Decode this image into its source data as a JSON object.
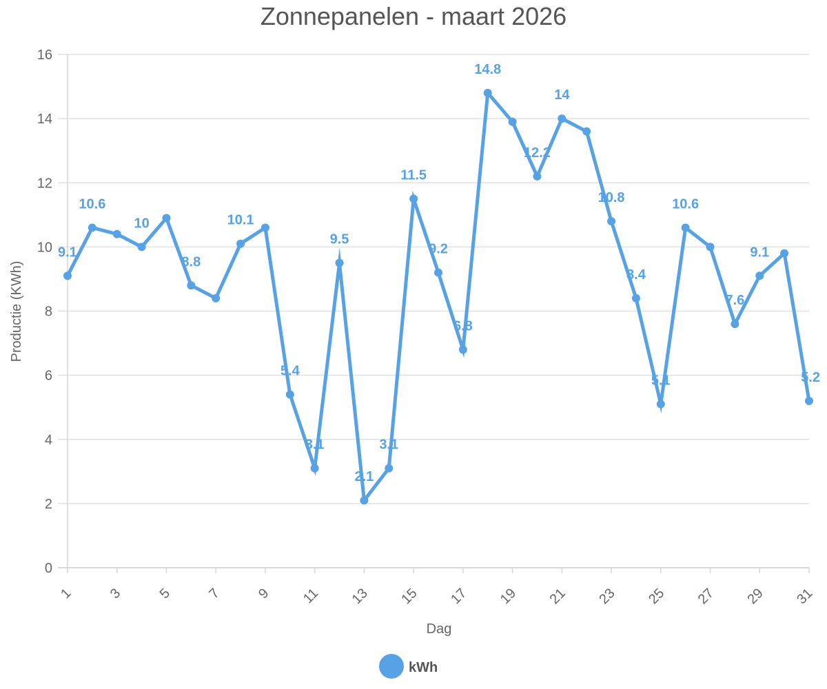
{
  "chart_data": {
    "type": "line",
    "title": "Zonnepanelen - maart 2026",
    "xlabel": "Dag",
    "ylabel": "Productie (KWh)",
    "ylim": [
      0,
      16
    ],
    "yticks": [
      0,
      2,
      4,
      6,
      8,
      10,
      12,
      14,
      16
    ],
    "xticks": [
      1,
      3,
      5,
      7,
      9,
      11,
      13,
      15,
      17,
      19,
      21,
      23,
      25,
      27,
      29,
      31
    ],
    "grid": true,
    "legend_position": "bottom",
    "x": [
      1,
      2,
      3,
      4,
      5,
      6,
      7,
      8,
      9,
      10,
      11,
      12,
      13,
      14,
      15,
      16,
      17,
      18,
      19,
      20,
      21,
      22,
      23,
      24,
      25,
      26,
      27,
      28,
      29,
      30,
      31
    ],
    "series": [
      {
        "name": "kWh",
        "color": "#57A2E5",
        "values": [
          9.1,
          10.6,
          10.4,
          10,
          10.9,
          8.8,
          8.4,
          10.1,
          10.6,
          5.4,
          3.1,
          9.5,
          2.1,
          3.1,
          11.5,
          9.2,
          6.8,
          14.8,
          13.9,
          12.2,
          14,
          13.6,
          10.8,
          8.4,
          5.1,
          10.6,
          10,
          7.6,
          9.1,
          9.8,
          5.2
        ]
      }
    ],
    "data_labels": [
      {
        "x": 1,
        "text": "9.1"
      },
      {
        "x": 2,
        "text": "10.6"
      },
      {
        "x": 4,
        "text": "10"
      },
      {
        "x": 6,
        "text": "8.8"
      },
      {
        "x": 8,
        "text": "10.1"
      },
      {
        "x": 10,
        "text": "5.4"
      },
      {
        "x": 11,
        "text": "3.1"
      },
      {
        "x": 12,
        "text": "9.5"
      },
      {
        "x": 13,
        "text": "2.1"
      },
      {
        "x": 14,
        "text": "3.1"
      },
      {
        "x": 15,
        "text": "11.5"
      },
      {
        "x": 16,
        "text": "9.2"
      },
      {
        "x": 17,
        "text": "6.8"
      },
      {
        "x": 18,
        "text": "14.8"
      },
      {
        "x": 20,
        "text": "12.2"
      },
      {
        "x": 21,
        "text": "14"
      },
      {
        "x": 23,
        "text": "10.8"
      },
      {
        "x": 24,
        "text": "8.4"
      },
      {
        "x": 25,
        "text": "5.1"
      },
      {
        "x": 26,
        "text": "10.6"
      },
      {
        "x": 28,
        "text": "7.6"
      },
      {
        "x": 29,
        "text": "9.1"
      },
      {
        "x": 31,
        "text": "5.2"
      }
    ]
  }
}
